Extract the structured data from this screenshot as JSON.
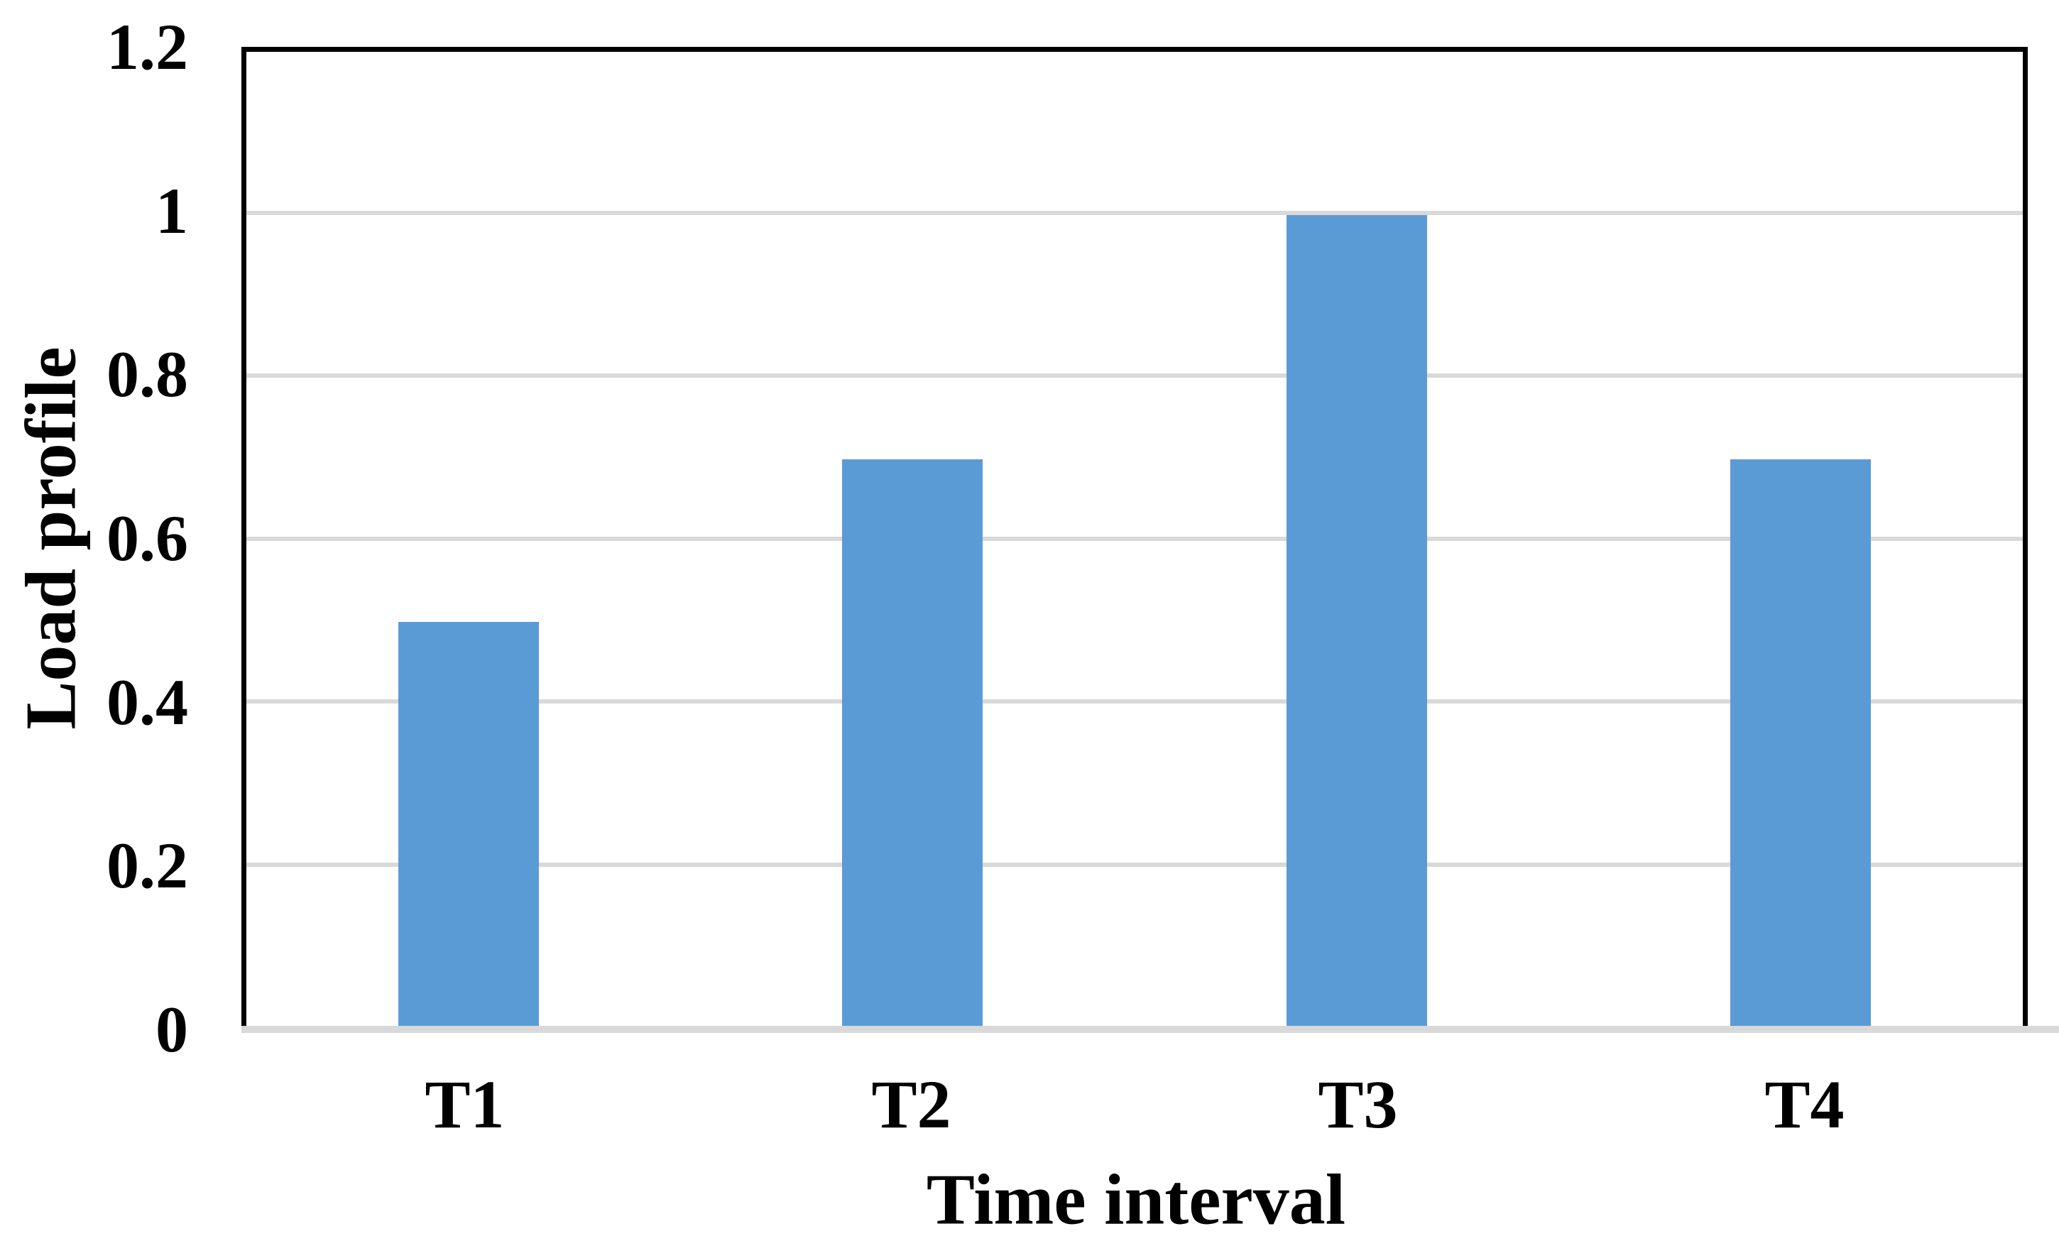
{
  "chart_data": {
    "type": "bar",
    "categories": [
      "T1",
      "T2",
      "T3",
      "T4"
    ],
    "values": [
      0.5,
      0.7,
      1,
      0.7
    ],
    "title": "",
    "xlabel": "Time interval",
    "ylabel": "Load profile",
    "ylim": [
      0,
      1.2
    ],
    "yticks": [
      0,
      0.2,
      0.4,
      0.6,
      0.8,
      1,
      1.2
    ],
    "ytick_labels": [
      "0",
      "0.2",
      "0.4",
      "0.6",
      "0.8",
      "1",
      "1.2"
    ],
    "grid": true,
    "legend": false,
    "colors": {
      "bar": "#5B9BD5",
      "gridline": "#D9D9D9",
      "baseline": "#D9D9D9",
      "axis_border": "#000000",
      "text": "#000000"
    }
  }
}
